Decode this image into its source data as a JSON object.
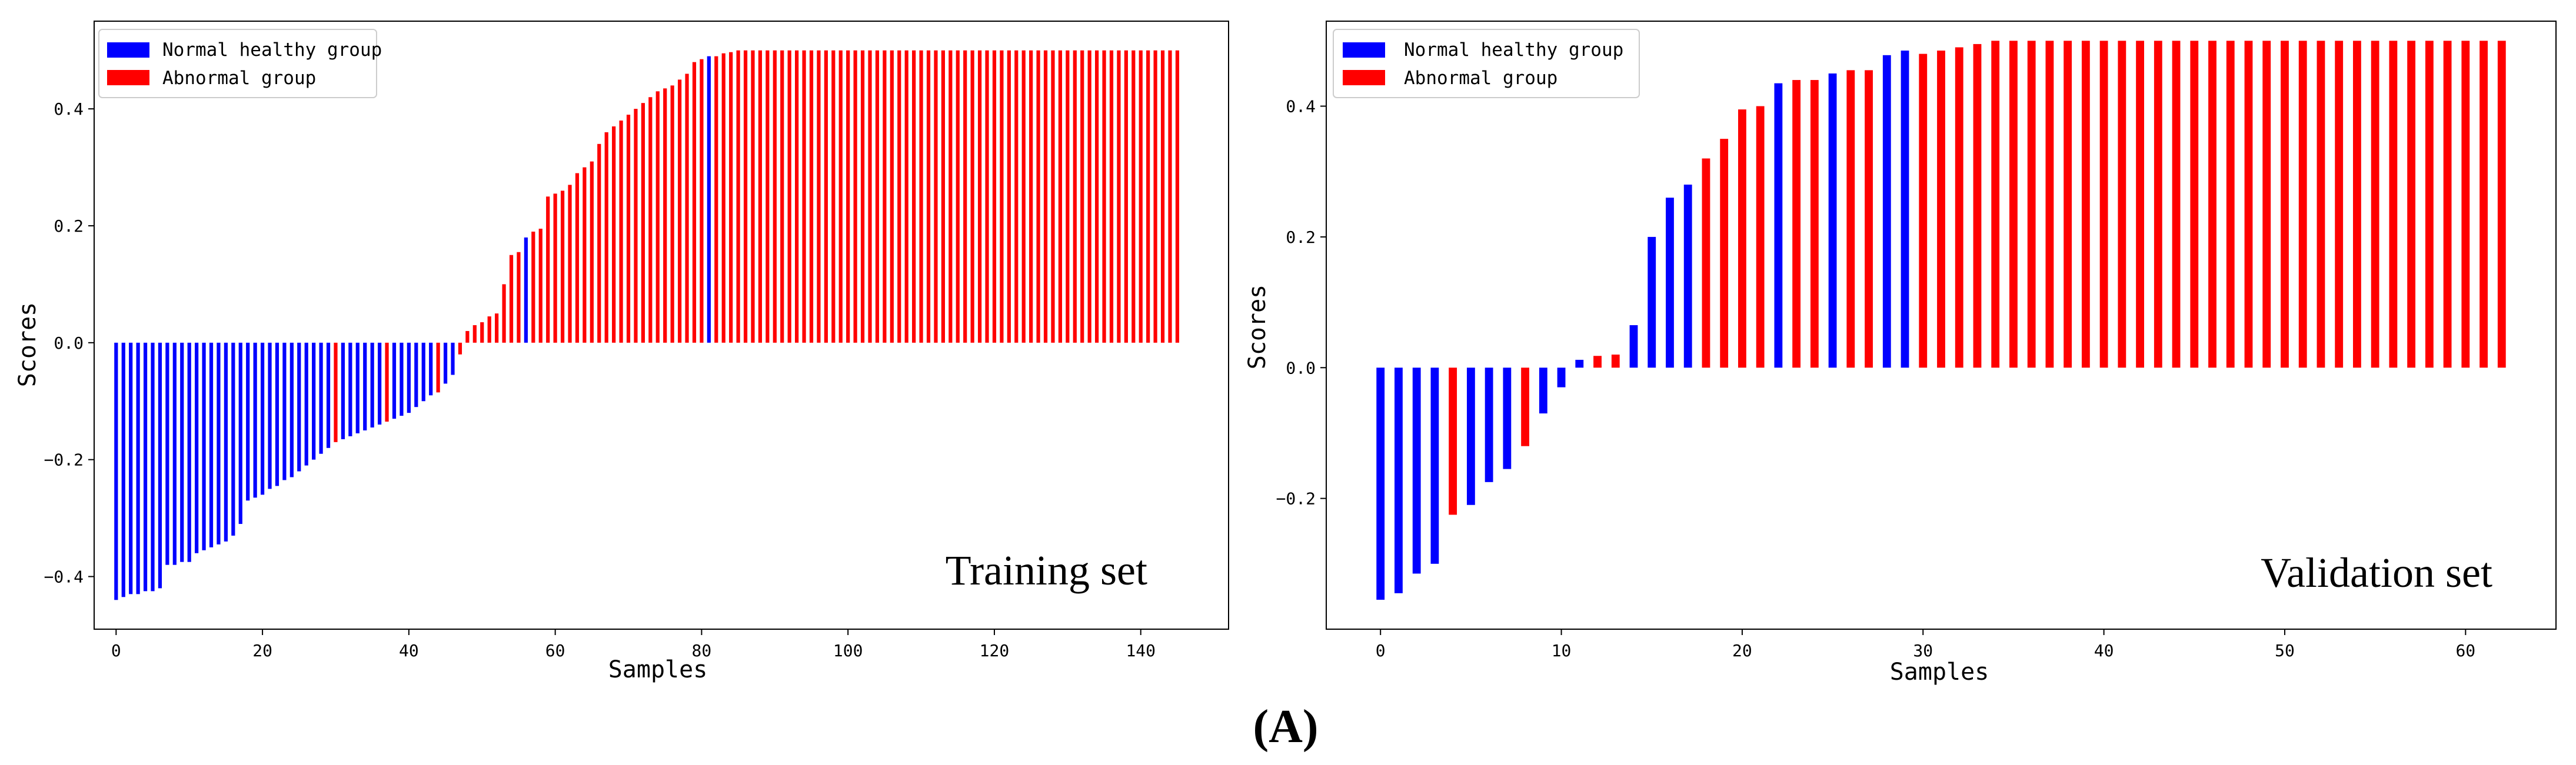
{
  "figure_caption": "(A)",
  "colors": {
    "normal": "#0000ff",
    "abnormal": "#ff0000"
  },
  "chart_data": [
    {
      "type": "bar",
      "title": "Training set",
      "xlabel": "Samples",
      "ylabel": "Scores",
      "xlim": [
        -3,
        152
      ],
      "ylim": [
        -0.49,
        0.55
      ],
      "xticks": [
        0,
        20,
        40,
        60,
        80,
        100,
        120,
        140
      ],
      "xtick_labels": [
        "0",
        "20",
        "40",
        "60",
        "80",
        "100",
        "120",
        "140"
      ],
      "yticks": [
        -0.4,
        -0.2,
        0.0,
        0.2,
        0.4
      ],
      "ytick_labels": [
        "−0.4",
        "−0.2",
        "0.0",
        "0.2",
        "0.4"
      ],
      "legend": {
        "position": "top-left",
        "entries": [
          {
            "label": "Normal healthy group",
            "group": "normal"
          },
          {
            "label": "Abnormal group",
            "group": "abnormal"
          }
        ]
      },
      "series": [
        {
          "name": "Normal healthy group",
          "group": "normal",
          "points": [
            [
              0,
              -0.44
            ],
            [
              1,
              -0.435
            ],
            [
              2,
              -0.43
            ],
            [
              3,
              -0.43
            ],
            [
              4,
              -0.425
            ],
            [
              5,
              -0.425
            ],
            [
              6,
              -0.42
            ],
            [
              7,
              -0.38
            ],
            [
              8,
              -0.38
            ],
            [
              9,
              -0.375
            ],
            [
              10,
              -0.375
            ],
            [
              11,
              -0.36
            ],
            [
              12,
              -0.355
            ],
            [
              13,
              -0.35
            ],
            [
              14,
              -0.345
            ],
            [
              15,
              -0.34
            ],
            [
              16,
              -0.33
            ],
            [
              17,
              -0.31
            ],
            [
              18,
              -0.27
            ],
            [
              19,
              -0.265
            ],
            [
              20,
              -0.26
            ],
            [
              21,
              -0.25
            ],
            [
              22,
              -0.245
            ],
            [
              23,
              -0.235
            ],
            [
              24,
              -0.23
            ],
            [
              25,
              -0.22
            ],
            [
              26,
              -0.21
            ],
            [
              27,
              -0.2
            ],
            [
              28,
              -0.19
            ],
            [
              29,
              -0.18
            ],
            [
              31,
              -0.165
            ],
            [
              32,
              -0.16
            ],
            [
              33,
              -0.155
            ],
            [
              34,
              -0.15
            ],
            [
              35,
              -0.145
            ],
            [
              36,
              -0.14
            ],
            [
              38,
              -0.13
            ],
            [
              39,
              -0.125
            ],
            [
              40,
              -0.12
            ],
            [
              41,
              -0.11
            ],
            [
              42,
              -0.1
            ],
            [
              43,
              -0.09
            ],
            [
              45,
              -0.07
            ],
            [
              46,
              -0.055
            ],
            [
              56,
              0.18
            ],
            [
              81,
              0.49
            ]
          ]
        },
        {
          "name": "Abnormal group",
          "group": "abnormal",
          "points": [
            [
              30,
              -0.17
            ],
            [
              37,
              -0.135
            ],
            [
              44,
              -0.085
            ],
            [
              47,
              -0.02
            ],
            [
              48,
              0.02
            ],
            [
              49,
              0.03
            ],
            [
              50,
              0.035
            ],
            [
              51,
              0.045
            ],
            [
              52,
              0.05
            ],
            [
              53,
              0.1
            ],
            [
              54,
              0.15
            ],
            [
              55,
              0.155
            ],
            [
              57,
              0.19
            ],
            [
              58,
              0.195
            ],
            [
              59,
              0.25
            ],
            [
              60,
              0.255
            ],
            [
              61,
              0.26
            ],
            [
              62,
              0.27
            ],
            [
              63,
              0.29
            ],
            [
              64,
              0.3
            ],
            [
              65,
              0.31
            ],
            [
              66,
              0.34
            ],
            [
              67,
              0.36
            ],
            [
              68,
              0.37
            ],
            [
              69,
              0.38
            ],
            [
              70,
              0.39
            ],
            [
              71,
              0.4
            ],
            [
              72,
              0.41
            ],
            [
              73,
              0.42
            ],
            [
              74,
              0.43
            ],
            [
              75,
              0.435
            ],
            [
              76,
              0.44
            ],
            [
              77,
              0.45
            ],
            [
              78,
              0.46
            ],
            [
              79,
              0.48
            ],
            [
              80,
              0.485
            ],
            [
              82,
              0.49
            ],
            [
              83,
              0.495
            ],
            [
              84,
              0.497
            ],
            [
              85,
              0.5
            ],
            [
              86,
              0.5
            ],
            [
              87,
              0.5
            ],
            [
              88,
              0.5
            ],
            [
              89,
              0.5
            ],
            [
              90,
              0.5
            ],
            [
              91,
              0.5
            ],
            [
              92,
              0.5
            ],
            [
              93,
              0.5
            ],
            [
              94,
              0.5
            ],
            [
              95,
              0.5
            ],
            [
              96,
              0.5
            ],
            [
              97,
              0.5
            ],
            [
              98,
              0.5
            ],
            [
              99,
              0.5
            ],
            [
              100,
              0.5
            ],
            [
              101,
              0.5
            ],
            [
              102,
              0.5
            ],
            [
              103,
              0.5
            ],
            [
              104,
              0.5
            ],
            [
              105,
              0.5
            ],
            [
              106,
              0.5
            ],
            [
              107,
              0.5
            ],
            [
              108,
              0.5
            ],
            [
              109,
              0.5
            ],
            [
              110,
              0.5
            ],
            [
              111,
              0.5
            ],
            [
              112,
              0.5
            ],
            [
              113,
              0.5
            ],
            [
              114,
              0.5
            ],
            [
              115,
              0.5
            ],
            [
              116,
              0.5
            ],
            [
              117,
              0.5
            ],
            [
              118,
              0.5
            ],
            [
              119,
              0.5
            ],
            [
              120,
              0.5
            ],
            [
              121,
              0.5
            ],
            [
              122,
              0.5
            ],
            [
              123,
              0.5
            ],
            [
              124,
              0.5
            ],
            [
              125,
              0.5
            ],
            [
              126,
              0.5
            ],
            [
              127,
              0.5
            ],
            [
              128,
              0.5
            ],
            [
              129,
              0.5
            ],
            [
              130,
              0.5
            ],
            [
              131,
              0.5
            ],
            [
              132,
              0.5
            ],
            [
              133,
              0.5
            ],
            [
              134,
              0.5
            ],
            [
              135,
              0.5
            ],
            [
              136,
              0.5
            ],
            [
              137,
              0.5
            ],
            [
              138,
              0.5
            ],
            [
              139,
              0.5
            ],
            [
              140,
              0.5
            ],
            [
              141,
              0.5
            ],
            [
              142,
              0.5
            ],
            [
              143,
              0.5
            ],
            [
              144,
              0.5
            ],
            [
              145,
              0.5
            ]
          ]
        }
      ]
    },
    {
      "type": "bar",
      "title": "Validation set",
      "xlabel": "Samples",
      "ylabel": "Scores",
      "xlim": [
        -3,
        65
      ],
      "ylim": [
        -0.4,
        0.53
      ],
      "xticks": [
        0,
        10,
        20,
        30,
        40,
        50,
        60
      ],
      "xtick_labels": [
        "0",
        "10",
        "20",
        "30",
        "40",
        "50",
        "60"
      ],
      "yticks": [
        -0.2,
        0.0,
        0.2,
        0.4
      ],
      "ytick_labels": [
        "−0.2",
        "0.0",
        "0.2",
        "0.4"
      ],
      "legend": {
        "position": "top-left",
        "entries": [
          {
            "label": "Normal healthy group",
            "group": "normal"
          },
          {
            "label": "Abnormal group",
            "group": "abnormal"
          }
        ]
      },
      "series": [
        {
          "name": "Normal healthy group",
          "group": "normal",
          "points": [
            [
              0,
              -0.355
            ],
            [
              1,
              -0.345
            ],
            [
              2,
              -0.315
            ],
            [
              3,
              -0.3
            ],
            [
              5,
              -0.21
            ],
            [
              6,
              -0.175
            ],
            [
              7,
              -0.155
            ],
            [
              9,
              -0.07
            ],
            [
              10,
              -0.03
            ],
            [
              11,
              0.012
            ],
            [
              14,
              0.065
            ],
            [
              15,
              0.2
            ],
            [
              16,
              0.26
            ],
            [
              17,
              0.28
            ],
            [
              22,
              0.435
            ],
            [
              25,
              0.45
            ],
            [
              28,
              0.478
            ],
            [
              29,
              0.485
            ]
          ]
        },
        {
          "name": "Abnormal group",
          "group": "abnormal",
          "points": [
            [
              4,
              -0.225
            ],
            [
              8,
              -0.12
            ],
            [
              12,
              0.018
            ],
            [
              13,
              0.02
            ],
            [
              18,
              0.32
            ],
            [
              19,
              0.35
            ],
            [
              20,
              0.395
            ],
            [
              21,
              0.4
            ],
            [
              23,
              0.44
            ],
            [
              24,
              0.44
            ],
            [
              26,
              0.455
            ],
            [
              27,
              0.455
            ],
            [
              30,
              0.48
            ],
            [
              31,
              0.485
            ],
            [
              32,
              0.49
            ],
            [
              33,
              0.495
            ],
            [
              34,
              0.5
            ],
            [
              35,
              0.5
            ],
            [
              36,
              0.5
            ],
            [
              37,
              0.5
            ],
            [
              38,
              0.5
            ],
            [
              39,
              0.5
            ],
            [
              40,
              0.5
            ],
            [
              41,
              0.5
            ],
            [
              42,
              0.5
            ],
            [
              43,
              0.5
            ],
            [
              44,
              0.5
            ],
            [
              45,
              0.5
            ],
            [
              46,
              0.5
            ],
            [
              47,
              0.5
            ],
            [
              48,
              0.5
            ],
            [
              49,
              0.5
            ],
            [
              50,
              0.5
            ],
            [
              51,
              0.5
            ],
            [
              52,
              0.5
            ],
            [
              53,
              0.5
            ],
            [
              54,
              0.5
            ],
            [
              55,
              0.5
            ],
            [
              56,
              0.5
            ],
            [
              57,
              0.5
            ],
            [
              58,
              0.5
            ],
            [
              59,
              0.5
            ],
            [
              60,
              0.5
            ],
            [
              61,
              0.5
            ],
            [
              62,
              0.5
            ]
          ]
        }
      ]
    }
  ]
}
